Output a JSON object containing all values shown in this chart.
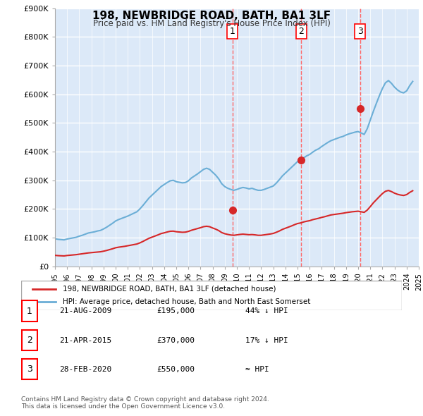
{
  "title": "198, NEWBRIDGE ROAD, BATH, BA1 3LF",
  "subtitle": "Price paid vs. HM Land Registry's House Price Index (HPI)",
  "ylabel": "",
  "ylim": [
    0,
    900000
  ],
  "yticks": [
    0,
    100000,
    200000,
    300000,
    400000,
    500000,
    600000,
    700000,
    800000,
    900000
  ],
  "ytick_labels": [
    "£0",
    "£100K",
    "£200K",
    "£300K",
    "£400K",
    "£500K",
    "£600K",
    "£700K",
    "£800K",
    "£900K"
  ],
  "background_color": "#dce9f8",
  "plot_bg_color": "#dce9f8",
  "grid_color": "#ffffff",
  "hpi_color": "#6baed6",
  "price_color": "#d62728",
  "sales": [
    {
      "date_num": 2009.64,
      "price": 195000,
      "label": "1"
    },
    {
      "date_num": 2015.31,
      "price": 370000,
      "label": "2"
    },
    {
      "date_num": 2020.16,
      "price": 550000,
      "label": "3"
    }
  ],
  "sale_vline_dates": [
    2009.64,
    2015.31,
    2020.16
  ],
  "hpi_data": {
    "x": [
      1995.0,
      1995.25,
      1995.5,
      1995.75,
      1996.0,
      1996.25,
      1996.5,
      1996.75,
      1997.0,
      1997.25,
      1997.5,
      1997.75,
      1998.0,
      1998.25,
      1998.5,
      1998.75,
      1999.0,
      1999.25,
      1999.5,
      1999.75,
      2000.0,
      2000.25,
      2000.5,
      2000.75,
      2001.0,
      2001.25,
      2001.5,
      2001.75,
      2002.0,
      2002.25,
      2002.5,
      2002.75,
      2003.0,
      2003.25,
      2003.5,
      2003.75,
      2004.0,
      2004.25,
      2004.5,
      2004.75,
      2005.0,
      2005.25,
      2005.5,
      2005.75,
      2006.0,
      2006.25,
      2006.5,
      2006.75,
      2007.0,
      2007.25,
      2007.5,
      2007.75,
      2008.0,
      2008.25,
      2008.5,
      2008.75,
      2009.0,
      2009.25,
      2009.5,
      2009.75,
      2010.0,
      2010.25,
      2010.5,
      2010.75,
      2011.0,
      2011.25,
      2011.5,
      2011.75,
      2012.0,
      2012.25,
      2012.5,
      2012.75,
      2013.0,
      2013.25,
      2013.5,
      2013.75,
      2014.0,
      2014.25,
      2014.5,
      2014.75,
      2015.0,
      2015.25,
      2015.5,
      2015.75,
      2016.0,
      2016.25,
      2016.5,
      2016.75,
      2017.0,
      2017.25,
      2017.5,
      2017.75,
      2018.0,
      2018.25,
      2018.5,
      2018.75,
      2019.0,
      2019.25,
      2019.5,
      2019.75,
      2020.0,
      2020.25,
      2020.5,
      2020.75,
      2021.0,
      2021.25,
      2021.5,
      2021.75,
      2022.0,
      2022.25,
      2022.5,
      2022.75,
      2023.0,
      2023.25,
      2023.5,
      2023.75,
      2024.0,
      2024.25,
      2024.5
    ],
    "y": [
      96000,
      94000,
      93000,
      92000,
      95000,
      97000,
      99000,
      101000,
      105000,
      108000,
      112000,
      116000,
      118000,
      120000,
      123000,
      125000,
      130000,
      136000,
      143000,
      150000,
      158000,
      163000,
      167000,
      171000,
      175000,
      180000,
      185000,
      190000,
      200000,
      212000,
      225000,
      238000,
      248000,
      258000,
      268000,
      278000,
      285000,
      292000,
      298000,
      300000,
      295000,
      293000,
      291000,
      292000,
      298000,
      308000,
      315000,
      322000,
      330000,
      338000,
      342000,
      338000,
      328000,
      318000,
      305000,
      288000,
      278000,
      272000,
      268000,
      265000,
      268000,
      272000,
      275000,
      273000,
      270000,
      272000,
      268000,
      265000,
      265000,
      268000,
      272000,
      276000,
      280000,
      290000,
      302000,
      315000,
      325000,
      335000,
      345000,
      355000,
      365000,
      370000,
      378000,
      385000,
      390000,
      398000,
      405000,
      410000,
      418000,
      425000,
      432000,
      438000,
      442000,
      446000,
      450000,
      453000,
      458000,
      462000,
      465000,
      468000,
      470000,
      465000,
      460000,
      480000,
      510000,
      540000,
      568000,
      595000,
      620000,
      640000,
      648000,
      638000,
      625000,
      615000,
      608000,
      605000,
      612000,
      630000,
      645000
    ]
  },
  "price_series": {
    "x": [
      1995.0,
      1995.25,
      1995.5,
      1995.75,
      1996.0,
      1996.25,
      1996.5,
      1996.75,
      1997.0,
      1997.25,
      1997.5,
      1997.75,
      1998.0,
      1998.25,
      1998.5,
      1998.75,
      1999.0,
      1999.25,
      1999.5,
      1999.75,
      2000.0,
      2000.25,
      2000.5,
      2000.75,
      2001.0,
      2001.25,
      2001.5,
      2001.75,
      2002.0,
      2002.25,
      2002.5,
      2002.75,
      2003.0,
      2003.25,
      2003.5,
      2003.75,
      2004.0,
      2004.25,
      2004.5,
      2004.75,
      2005.0,
      2005.25,
      2005.5,
      2005.75,
      2006.0,
      2006.25,
      2006.5,
      2006.75,
      2007.0,
      2007.25,
      2007.5,
      2007.75,
      2008.0,
      2008.25,
      2008.5,
      2008.75,
      2009.0,
      2009.25,
      2009.5,
      2009.75,
      2010.0,
      2010.25,
      2010.5,
      2010.75,
      2011.0,
      2011.25,
      2011.5,
      2011.75,
      2012.0,
      2012.25,
      2012.5,
      2012.75,
      2013.0,
      2013.25,
      2013.5,
      2013.75,
      2014.0,
      2014.25,
      2014.5,
      2014.75,
      2015.0,
      2015.25,
      2015.5,
      2015.75,
      2016.0,
      2016.25,
      2016.5,
      2016.75,
      2017.0,
      2017.25,
      2017.5,
      2017.75,
      2018.0,
      2018.25,
      2018.5,
      2018.75,
      2019.0,
      2019.25,
      2019.5,
      2019.75,
      2020.0,
      2020.25,
      2020.5,
      2020.75,
      2021.0,
      2021.25,
      2021.5,
      2021.75,
      2022.0,
      2022.25,
      2022.5,
      2022.75,
      2023.0,
      2023.25,
      2023.5,
      2023.75,
      2024.0,
      2024.25,
      2024.5
    ],
    "y": [
      38000,
      37000,
      36500,
      36000,
      37500,
      38500,
      39500,
      40500,
      42000,
      43500,
      45000,
      46500,
      47500,
      48500,
      49500,
      50500,
      52500,
      55000,
      58000,
      61000,
      64500,
      66500,
      68000,
      69500,
      71500,
      73500,
      75500,
      77500,
      81500,
      86500,
      92000,
      97500,
      101500,
      105500,
      109500,
      114000,
      116500,
      119500,
      122000,
      122500,
      120500,
      119500,
      118500,
      119000,
      121500,
      125500,
      128500,
      131500,
      134500,
      138000,
      139500,
      138000,
      133500,
      129500,
      124500,
      117500,
      113500,
      111000,
      109000,
      108000,
      109500,
      111000,
      112000,
      111000,
      110000,
      110500,
      109500,
      108000,
      108000,
      109500,
      111000,
      112500,
      114500,
      118500,
      123000,
      128500,
      132500,
      136500,
      140500,
      145000,
      149000,
      151000,
      154500,
      157000,
      159000,
      162500,
      165000,
      167500,
      170500,
      173000,
      176000,
      179000,
      180500,
      182000,
      183500,
      185000,
      187000,
      188500,
      190000,
      191000,
      192000,
      190000,
      188000,
      196000,
      208000,
      221000,
      232000,
      243000,
      253500,
      261500,
      264500,
      260500,
      255000,
      251000,
      248500,
      247000,
      250000,
      257500,
      263500
    ]
  },
  "xlim": [
    1995.0,
    2025.0
  ],
  "xticks": [
    1995,
    1996,
    1997,
    1998,
    1999,
    2000,
    2001,
    2002,
    2003,
    2004,
    2005,
    2006,
    2007,
    2008,
    2009,
    2010,
    2011,
    2012,
    2013,
    2014,
    2015,
    2016,
    2017,
    2018,
    2019,
    2020,
    2021,
    2022,
    2023,
    2024,
    2025
  ],
  "legend_entries": [
    "198, NEWBRIDGE ROAD, BATH, BA1 3LF (detached house)",
    "HPI: Average price, detached house, Bath and North East Somerset"
  ],
  "table_rows": [
    {
      "num": "1",
      "date": "21-AUG-2009",
      "price": "£195,000",
      "pct": "44% ↓ HPI"
    },
    {
      "num": "2",
      "date": "21-APR-2015",
      "price": "£370,000",
      "pct": "17% ↓ HPI"
    },
    {
      "num": "3",
      "date": "28-FEB-2020",
      "price": "£550,000",
      "pct": "≈ HPI"
    }
  ],
  "footnote": "Contains HM Land Registry data © Crown copyright and database right 2024.\nThis data is licensed under the Open Government Licence v3.0.",
  "vline_color": "#ff6666"
}
